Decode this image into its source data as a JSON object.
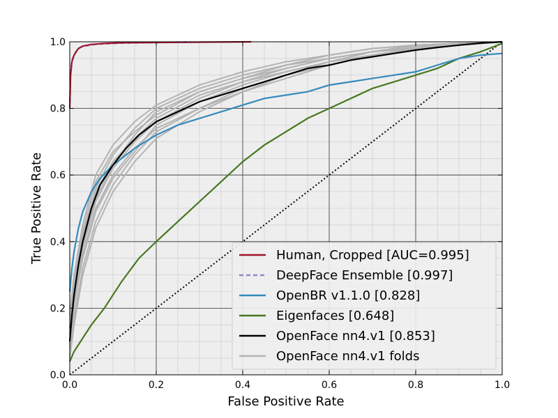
{
  "chart_data": {
    "type": "line",
    "xlabel": "False Positive Rate",
    "ylabel": "True Positive Rate",
    "xlim": [
      0,
      1
    ],
    "ylim": [
      0,
      1
    ],
    "xticks": [
      0,
      0.2,
      0.4,
      0.6,
      0.8,
      1
    ],
    "xtick_labels": [
      "0.0",
      "0.2",
      "0.4",
      "0.6",
      "0.8",
      "1.0"
    ],
    "yticks": [
      0,
      0.2,
      0.4,
      0.6,
      0.8,
      1
    ],
    "ytick_labels": [
      "0.0",
      "0.2",
      "0.4",
      "0.6",
      "0.8",
      "1.0"
    ],
    "grid": true,
    "minor_grid": true,
    "legend_position": "lower-right",
    "background": "#eeeeee",
    "series": [
      {
        "name": "Human, Cropped [AUC=0.995]",
        "color": "#a2142f",
        "style": "solid",
        "x": [
          0,
          0.002,
          0.005,
          0.01,
          0.015,
          0.02,
          0.03,
          0.05,
          0.08,
          0.12,
          0.2,
          0.3,
          0.42
        ],
        "y": [
          0.8,
          0.9,
          0.94,
          0.96,
          0.97,
          0.98,
          0.987,
          0.992,
          0.995,
          0.997,
          0.998,
          0.999,
          1.0
        ]
      },
      {
        "name": "DeepFace Ensemble [0.997]",
        "color": "#8c8cc8",
        "style": "dashed",
        "x": [
          0,
          0.002,
          0.005,
          0.01,
          0.015,
          0.02,
          0.03,
          0.05,
          0.08,
          0.12,
          0.2,
          0.28
        ],
        "y": [
          0.82,
          0.91,
          0.945,
          0.962,
          0.972,
          0.98,
          0.986,
          0.991,
          0.994,
          0.996,
          0.998,
          1.0
        ]
      },
      {
        "name": "OpenBR v1.1.0 [0.828]",
        "color": "#348abd",
        "style": "solid",
        "x": [
          0,
          0.005,
          0.01,
          0.02,
          0.03,
          0.05,
          0.07,
          0.1,
          0.15,
          0.2,
          0.25,
          0.3,
          0.35,
          0.4,
          0.45,
          0.5,
          0.55,
          0.6,
          0.65,
          0.7,
          0.75,
          0.8,
          0.85,
          0.9,
          0.95,
          1.0
        ],
        "y": [
          0.25,
          0.32,
          0.37,
          0.44,
          0.49,
          0.55,
          0.59,
          0.63,
          0.68,
          0.72,
          0.75,
          0.77,
          0.79,
          0.81,
          0.83,
          0.84,
          0.85,
          0.87,
          0.88,
          0.89,
          0.9,
          0.91,
          0.93,
          0.95,
          0.96,
          0.965
        ]
      },
      {
        "name": "Eigenfaces [0.648]",
        "color": "#467821",
        "style": "solid",
        "x": [
          0,
          0.01,
          0.03,
          0.05,
          0.08,
          0.12,
          0.16,
          0.2,
          0.25,
          0.3,
          0.35,
          0.4,
          0.45,
          0.5,
          0.55,
          0.6,
          0.65,
          0.7,
          0.75,
          0.8,
          0.85,
          0.9,
          0.95,
          1.0
        ],
        "y": [
          0.04,
          0.07,
          0.11,
          0.15,
          0.2,
          0.28,
          0.35,
          0.4,
          0.46,
          0.52,
          0.58,
          0.64,
          0.69,
          0.73,
          0.77,
          0.8,
          0.83,
          0.86,
          0.88,
          0.9,
          0.92,
          0.95,
          0.97,
          0.995
        ]
      },
      {
        "name": "OpenFace nn4.v1 [0.853]",
        "color": "#000000",
        "style": "solid",
        "x": [
          0,
          0.005,
          0.01,
          0.02,
          0.03,
          0.05,
          0.07,
          0.1,
          0.13,
          0.16,
          0.2,
          0.25,
          0.3,
          0.35,
          0.4,
          0.45,
          0.5,
          0.55,
          0.6,
          0.65,
          0.7,
          0.75,
          0.8,
          0.85,
          0.9,
          0.95,
          1.0
        ],
        "y": [
          0.1,
          0.18,
          0.24,
          0.33,
          0.4,
          0.5,
          0.57,
          0.63,
          0.68,
          0.72,
          0.76,
          0.79,
          0.82,
          0.84,
          0.86,
          0.88,
          0.9,
          0.92,
          0.93,
          0.945,
          0.955,
          0.965,
          0.975,
          0.983,
          0.99,
          0.996,
          1.0
        ]
      },
      {
        "name": "OpenFace nn4.v1 folds",
        "color": "#b3b3b3",
        "style": "solid",
        "folds": [
          {
            "x": [
              0,
              0.01,
              0.03,
              0.06,
              0.1,
              0.15,
              0.2,
              0.3,
              0.4,
              0.5,
              0.6,
              0.7,
              0.8,
              0.9,
              1.0
            ],
            "y": [
              0.15,
              0.28,
              0.42,
              0.55,
              0.64,
              0.71,
              0.77,
              0.84,
              0.88,
              0.92,
              0.95,
              0.97,
              0.98,
              0.99,
              1.0
            ]
          },
          {
            "x": [
              0,
              0.01,
              0.03,
              0.06,
              0.1,
              0.15,
              0.2,
              0.3,
              0.4,
              0.5,
              0.6,
              0.7,
              0.8,
              0.9,
              1.0
            ],
            "y": [
              0.08,
              0.2,
              0.36,
              0.5,
              0.6,
              0.68,
              0.74,
              0.8,
              0.85,
              0.89,
              0.93,
              0.96,
              0.98,
              0.99,
              1.0
            ]
          },
          {
            "x": [
              0,
              0.01,
              0.03,
              0.06,
              0.1,
              0.15,
              0.2,
              0.3,
              0.4,
              0.5,
              0.6,
              0.7,
              0.8,
              0.9,
              1.0
            ],
            "y": [
              0.12,
              0.25,
              0.4,
              0.56,
              0.66,
              0.74,
              0.8,
              0.86,
              0.9,
              0.93,
              0.96,
              0.98,
              0.99,
              0.995,
              1.0
            ]
          },
          {
            "x": [
              0,
              0.01,
              0.03,
              0.06,
              0.1,
              0.15,
              0.2,
              0.3,
              0.4,
              0.5,
              0.6,
              0.7,
              0.8,
              0.9,
              1.0
            ],
            "y": [
              0.06,
              0.17,
              0.32,
              0.46,
              0.57,
              0.66,
              0.73,
              0.8,
              0.86,
              0.9,
              0.94,
              0.96,
              0.98,
              0.99,
              1.0
            ]
          },
          {
            "x": [
              0,
              0.01,
              0.03,
              0.06,
              0.1,
              0.15,
              0.2,
              0.3,
              0.4,
              0.5,
              0.6,
              0.7,
              0.8,
              0.9,
              1.0
            ],
            "y": [
              0.18,
              0.3,
              0.45,
              0.6,
              0.69,
              0.76,
              0.81,
              0.87,
              0.91,
              0.94,
              0.96,
              0.98,
              0.99,
              0.995,
              1.0
            ]
          },
          {
            "x": [
              0,
              0.01,
              0.03,
              0.06,
              0.1,
              0.15,
              0.2,
              0.3,
              0.4,
              0.5,
              0.6,
              0.7,
              0.8,
              0.9,
              1.0
            ],
            "y": [
              0.1,
              0.22,
              0.38,
              0.52,
              0.62,
              0.7,
              0.76,
              0.83,
              0.88,
              0.91,
              0.94,
              0.97,
              0.98,
              0.99,
              1.0
            ]
          },
          {
            "x": [
              0,
              0.01,
              0.03,
              0.06,
              0.1,
              0.15,
              0.2,
              0.3,
              0.4,
              0.5,
              0.6,
              0.7,
              0.8,
              0.9,
              1.0
            ],
            "y": [
              0.05,
              0.15,
              0.3,
              0.44,
              0.55,
              0.64,
              0.71,
              0.79,
              0.85,
              0.9,
              0.93,
              0.96,
              0.98,
              0.99,
              1.0
            ]
          },
          {
            "x": [
              0,
              0.01,
              0.03,
              0.06,
              0.1,
              0.15,
              0.2,
              0.3,
              0.4,
              0.5,
              0.6,
              0.7,
              0.8,
              0.9,
              1.0
            ],
            "y": [
              0.14,
              0.27,
              0.43,
              0.58,
              0.67,
              0.73,
              0.78,
              0.85,
              0.89,
              0.93,
              0.95,
              0.97,
              0.99,
              0.995,
              1.0
            ]
          },
          {
            "x": [
              0,
              0.01,
              0.03,
              0.06,
              0.1,
              0.15,
              0.2,
              0.3,
              0.4,
              0.5,
              0.6,
              0.7,
              0.8,
              0.9,
              1.0
            ],
            "y": [
              0.09,
              0.21,
              0.35,
              0.49,
              0.59,
              0.67,
              0.75,
              0.82,
              0.87,
              0.91,
              0.94,
              0.96,
              0.98,
              0.99,
              1.0
            ]
          },
          {
            "x": [
              0,
              0.01,
              0.03,
              0.06,
              0.1,
              0.15,
              0.2,
              0.3,
              0.4,
              0.5,
              0.6,
              0.7,
              0.8,
              0.9,
              1.0
            ],
            "y": [
              0.11,
              0.24,
              0.39,
              0.53,
              0.63,
              0.72,
              0.79,
              0.85,
              0.89,
              0.92,
              0.95,
              0.97,
              0.985,
              0.995,
              1.0
            ]
          }
        ]
      }
    ],
    "reference_line": {
      "style": "dotted",
      "color": "#000000",
      "x": [
        0,
        1
      ],
      "y": [
        0,
        1
      ]
    }
  }
}
